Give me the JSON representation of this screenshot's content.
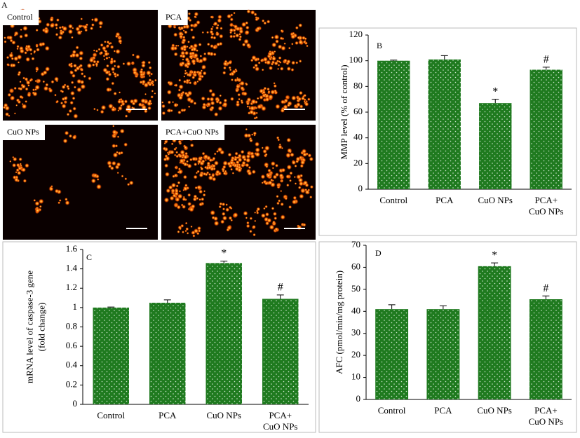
{
  "panel_a": {
    "label": "A",
    "images": [
      "Control",
      "PCA",
      "CuO NPs",
      "PCA+CuO NPs"
    ]
  },
  "chart_data": [
    {
      "type": "bar",
      "panel": "B",
      "ylabel": [
        "MMP level (% of control)"
      ],
      "categories": [
        "Control",
        "PCA",
        "CuO NPs",
        "PCA+ CuO NPs"
      ],
      "values": [
        100,
        101,
        67,
        93
      ],
      "errors": [
        0.5,
        3,
        3,
        2
      ],
      "marks": [
        null,
        null,
        "*",
        "#"
      ],
      "color": "#1f7a1f",
      "ylim": [
        0,
        120
      ],
      "yticks": [
        0,
        20,
        40,
        60,
        80,
        100,
        120
      ]
    },
    {
      "type": "bar",
      "panel": "C",
      "ylabel": [
        "mRNA level of caspase-3 gene",
        "(fold change)"
      ],
      "categories": [
        "Control",
        "PCA",
        "CuO NPs",
        "PCA+ CuO NPs"
      ],
      "values": [
        1.0,
        1.05,
        1.46,
        1.09
      ],
      "errors": [
        0.005,
        0.03,
        0.02,
        0.04
      ],
      "marks": [
        null,
        null,
        "*",
        "#"
      ],
      "color": "#1f7a1f",
      "ylim": [
        0,
        1.6
      ],
      "yticks": [
        0,
        0.2,
        0.4,
        0.6,
        0.8,
        1,
        1.2,
        1.4,
        1.6
      ]
    },
    {
      "type": "bar",
      "panel": "D",
      "ylabel": [
        "AFC (pmol/min/mg protein)"
      ],
      "categories": [
        "Control",
        "PCA",
        "CuO NPs",
        "PCA+ CuO NPs"
      ],
      "values": [
        41,
        41,
        60.5,
        45.5
      ],
      "errors": [
        2,
        1.5,
        1.5,
        1.5
      ],
      "marks": [
        null,
        null,
        "*",
        "#"
      ],
      "color": "#1f7a1f",
      "ylim": [
        0,
        70
      ],
      "yticks": [
        0,
        10,
        20,
        30,
        40,
        50,
        60,
        70
      ]
    }
  ]
}
